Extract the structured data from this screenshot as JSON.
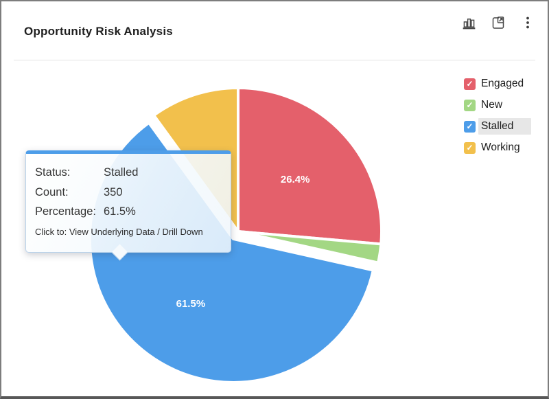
{
  "header": {
    "title": "Opportunity Risk Analysis",
    "toolbar_icons": [
      "bar-chart-icon",
      "export-icon",
      "more-options-icon"
    ]
  },
  "colors": {
    "engaged": "#e4606b",
    "new": "#a3d784",
    "stalled": "#4d9de9",
    "working": "#f2c04c",
    "tooltip_accent": "#4d9de9",
    "legend_highlight": "#e7e7e7"
  },
  "chart_data": {
    "type": "pie",
    "title": "Opportunity Risk Analysis",
    "legend_position": "right",
    "series_field": "Status",
    "slices": [
      {
        "label": "Engaged",
        "value_pct": 26.4,
        "color": "#e4606b",
        "pct_label": "26.4%",
        "exploded": false
      },
      {
        "label": "New",
        "value_pct": 2.1,
        "color": "#a3d784",
        "pct_label": "",
        "exploded": false
      },
      {
        "label": "Stalled",
        "value_pct": 61.5,
        "color": "#4d9de9",
        "pct_label": "61.5%",
        "exploded": true,
        "count": 350
      },
      {
        "label": "Working",
        "value_pct": 10.0,
        "color": "#f2c04c",
        "pct_label": "",
        "exploded": false
      }
    ]
  },
  "legend": {
    "items": [
      {
        "label": "Engaged",
        "color": "#e4606b",
        "checked": true,
        "highlighted": false
      },
      {
        "label": "New",
        "color": "#a3d784",
        "checked": true,
        "highlighted": false
      },
      {
        "label": "Stalled",
        "color": "#4d9de9",
        "checked": true,
        "highlighted": true
      },
      {
        "label": "Working",
        "color": "#f2c04c",
        "checked": true,
        "highlighted": false
      }
    ]
  },
  "tooltip": {
    "rows": [
      {
        "label": "Status:",
        "value": "Stalled"
      },
      {
        "label": "Count:",
        "value": "350"
      },
      {
        "label": "Percentage:",
        "value": "61.5%"
      }
    ],
    "footer": "Click to: View Underlying Data / Drill Down"
  }
}
